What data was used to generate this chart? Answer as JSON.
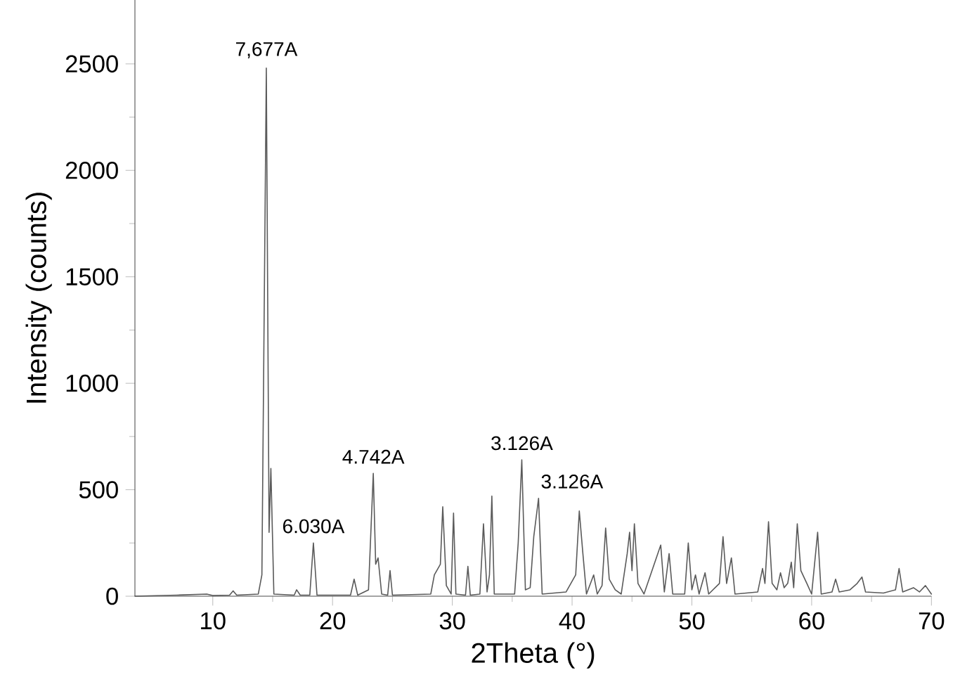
{
  "chart_data": {
    "type": "line",
    "xlabel": "2Theta (°)",
    "ylabel": "Intensity (counts)",
    "xlim": [
      3.5,
      70
    ],
    "ylim": [
      0,
      2800
    ],
    "xticks": [
      10,
      20,
      30,
      40,
      50,
      60,
      70
    ],
    "yticks": [
      0,
      500,
      1000,
      1500,
      2000,
      2500
    ],
    "marker": "none",
    "line_style": "solid",
    "series": [
      {
        "color": "#5a5a5a",
        "x": [
          3.5,
          7,
          9.5,
          10,
          11.4,
          11.7,
          12,
          13.8,
          14.1,
          14.47,
          14.7,
          14.85,
          15.1,
          16.8,
          17.0,
          17.3,
          18.1,
          18.4,
          18.7,
          21.5,
          21.8,
          22.1,
          23.0,
          23.4,
          23.6,
          23.8,
          24.1,
          24.6,
          24.8,
          25.0,
          28.2,
          28.5,
          29.0,
          29.2,
          29.5,
          29.9,
          30.1,
          30.3,
          31.1,
          31.3,
          31.5,
          32.3,
          32.6,
          32.9,
          33.1,
          33.3,
          33.5,
          35.2,
          35.5,
          35.8,
          36.1,
          36.5,
          36.8,
          37.2,
          37.5,
          39.5,
          40.3,
          40.6,
          40.9,
          41.2,
          41.8,
          42.1,
          42.5,
          42.8,
          43.1,
          43.6,
          44.1,
          44.6,
          44.8,
          45.0,
          45.2,
          45.5,
          46.0,
          47.4,
          47.7,
          48.1,
          48.4,
          49.4,
          49.7,
          50.0,
          50.3,
          50.6,
          51.1,
          51.4,
          52.3,
          52.6,
          52.9,
          53.3,
          53.6,
          55.5,
          55.9,
          56.1,
          56.4,
          56.7,
          57.1,
          57.4,
          57.7,
          58.0,
          58.3,
          58.5,
          58.8,
          59.1,
          59.6,
          60.0,
          60.5,
          60.8,
          61.7,
          62.0,
          62.3,
          63.2,
          63.8,
          64.2,
          64.5,
          66.0,
          67.0,
          67.3,
          67.6,
          68.5,
          69.0,
          69.5,
          70
        ],
        "values": [
          0,
          5,
          10,
          3,
          5,
          25,
          5,
          10,
          100,
          2480,
          300,
          600,
          10,
          5,
          30,
          5,
          5,
          250,
          5,
          5,
          80,
          5,
          30,
          577,
          150,
          180,
          10,
          5,
          120,
          5,
          10,
          100,
          150,
          420,
          50,
          10,
          390,
          10,
          5,
          140,
          5,
          10,
          340,
          20,
          100,
          470,
          10,
          10,
          250,
          640,
          30,
          40,
          280,
          460,
          10,
          20,
          100,
          400,
          200,
          10,
          100,
          10,
          50,
          320,
          80,
          30,
          10,
          200,
          300,
          120,
          340,
          60,
          10,
          240,
          20,
          200,
          10,
          10,
          250,
          30,
          100,
          10,
          110,
          10,
          60,
          280,
          60,
          180,
          10,
          20,
          130,
          60,
          350,
          60,
          30,
          110,
          40,
          60,
          160,
          40,
          340,
          120,
          60,
          10,
          300,
          10,
          20,
          80,
          20,
          30,
          60,
          90,
          20,
          15,
          30,
          130,
          20,
          40,
          20,
          50,
          10
        ]
      }
    ],
    "annotations": [
      {
        "text": "7,677A",
        "x": 14.47,
        "y": 2480
      },
      {
        "text": "6.030A",
        "x": 18.4,
        "y": 250
      },
      {
        "text": "4.742A",
        "x": 23.4,
        "y": 577
      },
      {
        "text": "3.126A",
        "x": 35.8,
        "y": 640
      },
      {
        "text": "3.126A",
        "x": 37.2,
        "y": 460
      }
    ]
  }
}
